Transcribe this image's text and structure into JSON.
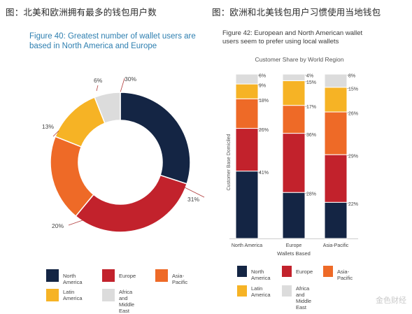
{
  "left": {
    "caption": "图：北美和欧洲拥有最多的钱包用户数",
    "figure_title": "Figure 40: Greatest number of wallet users are based in North America and Europe"
  },
  "right": {
    "caption": "图：欧洲和北美钱包用户习惯使用当地钱包",
    "figure_title": "Figure 42: European and North American wallet users seem to prefer using local wallets"
  },
  "colors": {
    "North America": "#142544",
    "Europe": "#c2222c",
    "Asia-Pacific": "#ee6a27",
    "Latin America": "#f6b325",
    "Africa and Middle East": "#dcdcdc"
  },
  "legend_left": [
    {
      "label": "North America",
      "key": "North America"
    },
    {
      "label": "Europe",
      "key": "Europe"
    },
    {
      "label": "Asia-Pacific",
      "key": "Asia-Pacific"
    },
    {
      "label": "Latin\nAmerica",
      "key": "Latin America"
    },
    {
      "label": "Africa and\nMiddle East",
      "key": "Africa and Middle East"
    }
  ],
  "legend_right": [
    {
      "label": "North America",
      "key": "North America"
    },
    {
      "label": "Europe",
      "key": "Europe"
    },
    {
      "label": "Asia-Pacific",
      "key": "Asia-Pacific"
    },
    {
      "label": "Latin\nAmerica",
      "key": "Latin America"
    },
    {
      "label": "Africa and\nMiddle East",
      "key": "Africa and Middle East"
    }
  ],
  "watermark": "金色财经",
  "chart_data": [
    {
      "type": "pie",
      "donut": true,
      "title": "Figure 40: Greatest number of wallet users are based in North America and Europe",
      "slices": [
        {
          "label": "North America",
          "value": 30,
          "text": "30%"
        },
        {
          "label": "Europe",
          "value": 31,
          "text": "31%"
        },
        {
          "label": "Asia-Pacific",
          "value": 20,
          "text": "20%"
        },
        {
          "label": "Latin America",
          "value": 13,
          "text": "13%"
        },
        {
          "label": "Africa and Middle East",
          "value": 6,
          "text": "6%"
        }
      ],
      "legend": "bottom"
    },
    {
      "type": "bar",
      "stacked": true,
      "title": "Figure 42: European and North American wallet users seem to prefer using local wallets",
      "subtitle": "Customer Share by World Region",
      "xlabel": "Wallets Based",
      "ylabel": "Customer Base Domiciled",
      "categories": [
        "North America",
        "Europe",
        "Asia-Pacific"
      ],
      "ylim": [
        0,
        100
      ],
      "series": [
        {
          "name": "North America",
          "values": [
            41,
            28,
            22
          ]
        },
        {
          "name": "Europe",
          "values": [
            26,
            36,
            29
          ]
        },
        {
          "name": "Asia-Pacific",
          "values": [
            18,
            17,
            26
          ]
        },
        {
          "name": "Latin America",
          "values": [
            9,
            15,
            15
          ]
        },
        {
          "name": "Africa and Middle East",
          "values": [
            6,
            4,
            8
          ]
        }
      ],
      "legend": "bottom"
    }
  ]
}
